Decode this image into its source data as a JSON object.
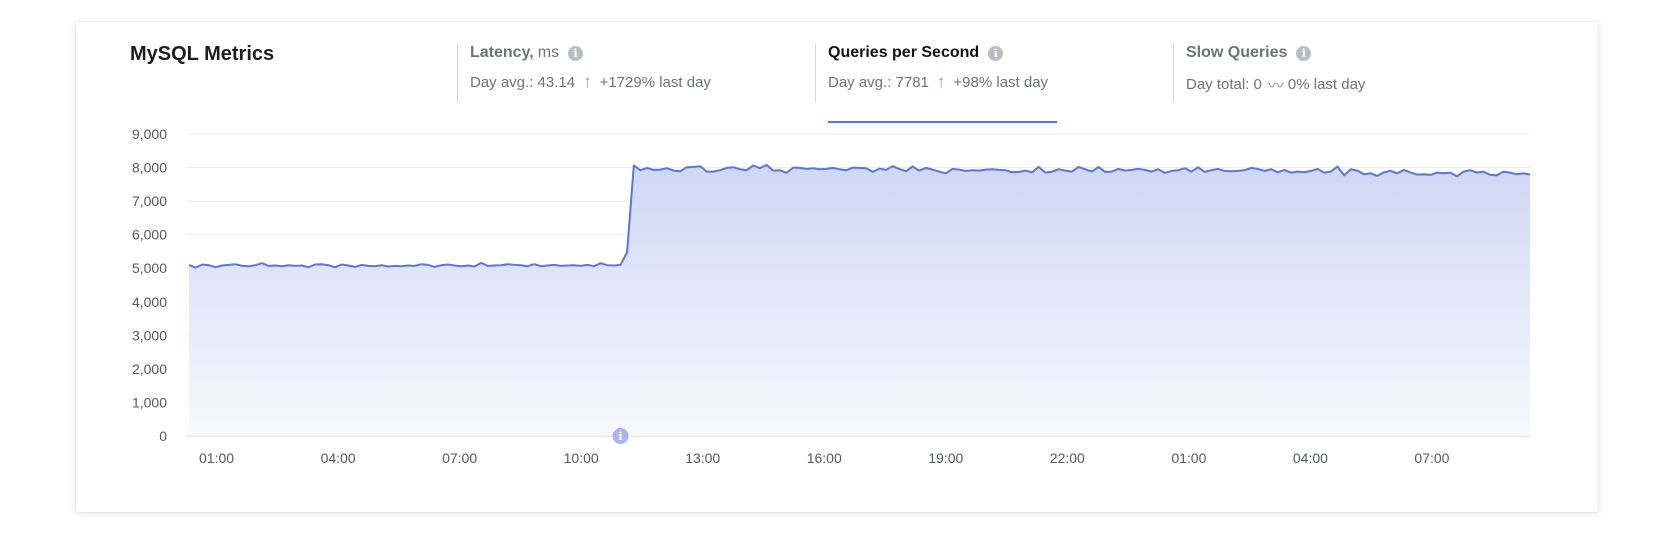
{
  "card": {
    "title": "MySQL Metrics"
  },
  "metrics": [
    {
      "title": "Latency,",
      "unit": "ms",
      "summary": "Day avg.: 43.14",
      "trend": "up",
      "change": "+1729% last day",
      "active": false
    },
    {
      "title": "Queries per Second",
      "unit": "",
      "summary": "Day avg.: 7781",
      "trend": "up",
      "change": "+98% last day",
      "active": true
    },
    {
      "title": "Slow Queries",
      "unit": "",
      "summary": "Day total: 0",
      "trend": "flat",
      "change": "0% last day",
      "active": false
    }
  ],
  "colors": {
    "line": "#5a77d9",
    "fill_top": "#cfd7f4",
    "fill_bottom": "#f8f9fe",
    "trend_up": "#ef8a14",
    "annotation": "#a5b6f1"
  },
  "chart_data": {
    "type": "area",
    "title": "",
    "xlabel": "",
    "ylabel": "",
    "ylim": [
      0,
      9000
    ],
    "yticks": [
      "0",
      "1,000",
      "2,000",
      "3,000",
      "4,000",
      "5,000",
      "6,000",
      "7,000",
      "8,000",
      "9,000"
    ],
    "xticks": [
      "01:00",
      "04:00",
      "07:00",
      "10:00",
      "13:00",
      "16:00",
      "19:00",
      "22:00",
      "01:00",
      "04:00",
      "07:00"
    ],
    "xtick_hours": [
      1,
      4,
      7,
      10,
      13,
      16,
      19,
      22,
      25,
      28,
      31
    ],
    "x_range_hours": [
      0.32,
      33.42
    ],
    "grid": true,
    "annotation": {
      "hour": 10.97,
      "label": "i"
    },
    "series": [
      {
        "values": [
          5100,
          5020,
          5110,
          5090,
          5030,
          5080,
          5100,
          5120,
          5070,
          5060,
          5090,
          5150,
          5070,
          5080,
          5060,
          5090,
          5070,
          5080,
          5030,
          5110,
          5120,
          5090,
          5030,
          5110,
          5080,
          5040,
          5100,
          5070,
          5060,
          5090,
          5050,
          5070,
          5060,
          5080,
          5070,
          5120,
          5100,
          5040,
          5090,
          5110,
          5080,
          5060,
          5080,
          5050,
          5160,
          5070,
          5080,
          5090,
          5120,
          5100,
          5090,
          5060,
          5120,
          5060,
          5080,
          5100,
          5070,
          5080,
          5090,
          5070,
          5100,
          5060,
          5150,
          5090,
          5080,
          5100,
          5480,
          8060,
          7920,
          7990,
          7930,
          7940,
          7980,
          7910,
          7890,
          8010,
          8020,
          8040,
          7880,
          7880,
          7920,
          7990,
          8010,
          7950,
          7920,
          8060,
          7980,
          8080,
          7910,
          7920,
          7840,
          8000,
          7990,
          7960,
          7980,
          7950,
          7960,
          7990,
          7950,
          7920,
          8000,
          7990,
          7980,
          7870,
          7970,
          7930,
          8040,
          7960,
          7890,
          8030,
          7910,
          7990,
          7940,
          7880,
          7830,
          7960,
          7940,
          7900,
          7920,
          7910,
          7940,
          7950,
          7930,
          7920,
          7860,
          7870,
          7910,
          7860,
          8020,
          7850,
          7880,
          7950,
          7910,
          7880,
          8020,
          7950,
          7880,
          8020,
          7870,
          7880,
          7960,
          7910,
          7930,
          7960,
          7930,
          7880,
          7950,
          7840,
          7900,
          7920,
          7980,
          7880,
          8010,
          7870,
          7920,
          7960,
          7900,
          7890,
          7900,
          7920,
          7990,
          7960,
          7900,
          7950,
          7860,
          7930,
          7850,
          7880,
          7860,
          7900,
          7960,
          7850,
          7880,
          8030,
          7770,
          7950,
          7910,
          7800,
          7830,
          7750,
          7860,
          7900,
          7830,
          7930,
          7850,
          7790,
          7800,
          7780,
          7850,
          7830,
          7850,
          7740,
          7880,
          7920,
          7850,
          7880,
          7780,
          7770,
          7880,
          7850,
          7800,
          7830,
          7790
        ]
      }
    ]
  }
}
